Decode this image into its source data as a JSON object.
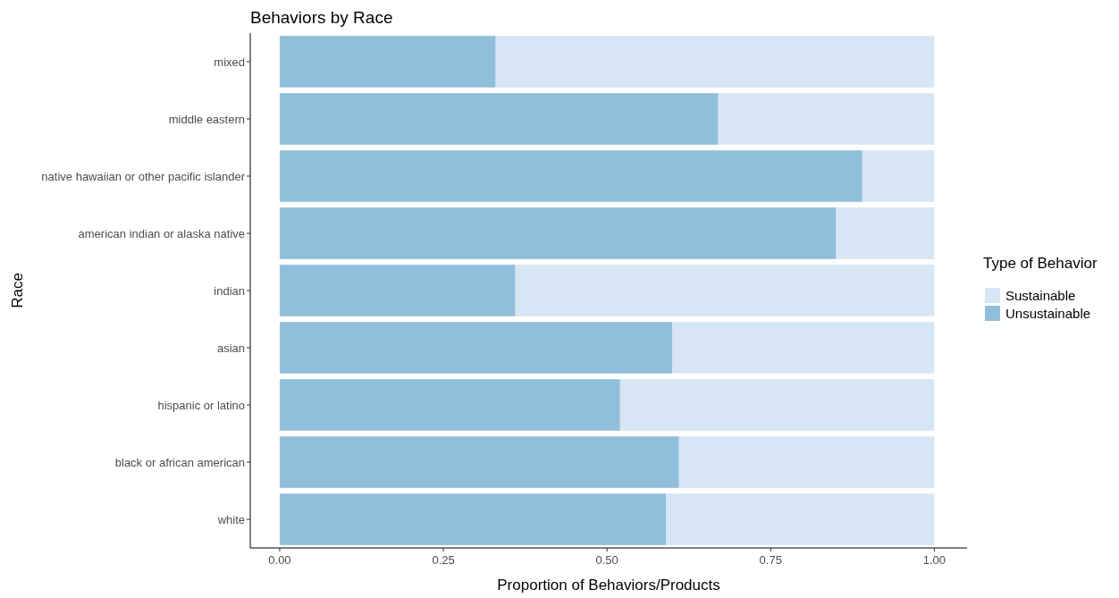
{
  "chart_data": {
    "type": "bar",
    "orientation": "horizontal",
    "stacked": true,
    "title": "Behaviors by Race",
    "xlabel": "Proportion of Behaviors/Products",
    "ylabel": "Race",
    "legend_title": "Type of Behavior",
    "legend": "right",
    "grid": false,
    "categories": [
      "mixed",
      "middle eastern",
      "native hawaiian or other pacific islander",
      "american indian or alaska native",
      "indian",
      "asian",
      "hispanic or latino",
      "black or african american",
      "white"
    ],
    "series": [
      {
        "name": "Unsustainable",
        "color": "#91bfdb",
        "values": [
          0.33,
          0.67,
          0.89,
          0.85,
          0.36,
          0.6,
          0.52,
          0.61,
          0.59
        ]
      },
      {
        "name": "Sustainable",
        "color": "#d6e6f4",
        "values": [
          0.67,
          0.33,
          0.11,
          0.15,
          0.64,
          0.4,
          0.48,
          0.39,
          0.41
        ]
      }
    ],
    "xlim": [
      -0.045,
      1.05
    ],
    "xticks": [
      {
        "value": 0,
        "label": "0.00"
      },
      {
        "value": 0.25,
        "label": "0.25"
      },
      {
        "value": 0.5,
        "label": "0.50"
      },
      {
        "value": 0.75,
        "label": "0.75"
      },
      {
        "value": 1,
        "label": "1.00"
      }
    ]
  }
}
